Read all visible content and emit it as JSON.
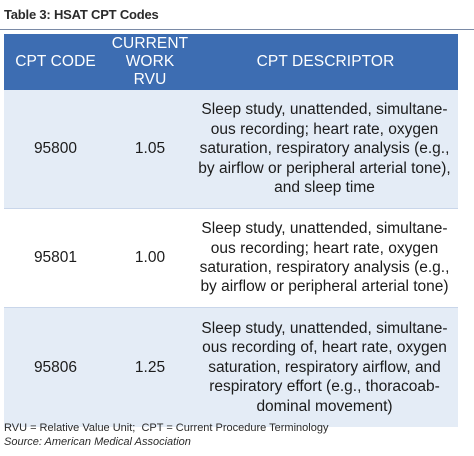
{
  "title": "Table 3: HSAT CPT Codes",
  "table": {
    "headers": [
      "CPT CODE",
      "CURRENT\nWORK RVU",
      "CPT DESCRIPTOR"
    ],
    "rows": [
      {
        "code": "95800",
        "rvu": "1.05",
        "descriptor": "Sleep study, unattended, simultane-\nous recording; heart rate, oxygen\nsaturation, respiratory analysis (e.g.,\nby airflow or peripheral arterial tone),\nand sleep time"
      },
      {
        "code": "95801",
        "rvu": "1.00",
        "descriptor": "Sleep study, unattended, simultane-\nous recording; heart rate, oxygen\nsaturation, respiratory analysis (e.g.,\nby airflow or peripheral arterial tone)"
      },
      {
        "code": "95806",
        "rvu": "1.25",
        "descriptor": "Sleep study, unattended, simultane-\nous recording of, heart rate, oxygen\nsaturation, respiratory airflow, and\nrespiratory effort (e.g., thoracoab-\ndominal movement)"
      }
    ]
  },
  "footnote": "RVU = Relative Value Unit;  CPT = Current Procedure Terminology",
  "source": "Source: American Medical Association",
  "colors": {
    "header_bg": "#3d6db2",
    "header_text": "#ffffff",
    "row_shade": "#e4ecf6",
    "row_plain": "#ffffff"
  }
}
